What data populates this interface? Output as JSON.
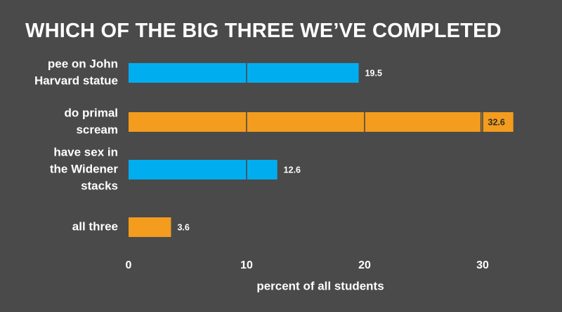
{
  "chart_data": {
    "type": "bar",
    "orientation": "horizontal",
    "title": "WHICH OF THE BIG THREE WE’VE COMPLETED",
    "xlabel": "percent of all students",
    "ylabel": "",
    "xlim": [
      0,
      33
    ],
    "xticks": [
      0,
      10,
      20,
      30
    ],
    "grid": false,
    "legend": "none",
    "categories": [
      [
        "pee on John",
        "Harvard statue"
      ],
      [
        "do primal",
        "scream"
      ],
      [
        "have sex in",
        "the Widener",
        "stacks"
      ],
      [
        "all three"
      ]
    ],
    "values": [
      19.5,
      32.6,
      12.6,
      3.6
    ],
    "value_labels": [
      "19.5",
      "32.6",
      "12.6",
      "3.6"
    ],
    "bar_colors": [
      "#00aeef",
      "#f39c1d",
      "#00aeef",
      "#f39c1d"
    ],
    "segment_interval": 10
  },
  "colors": {
    "background": "#4a4a4a",
    "text": "#ffffff",
    "divider": "#4a4a4a"
  }
}
